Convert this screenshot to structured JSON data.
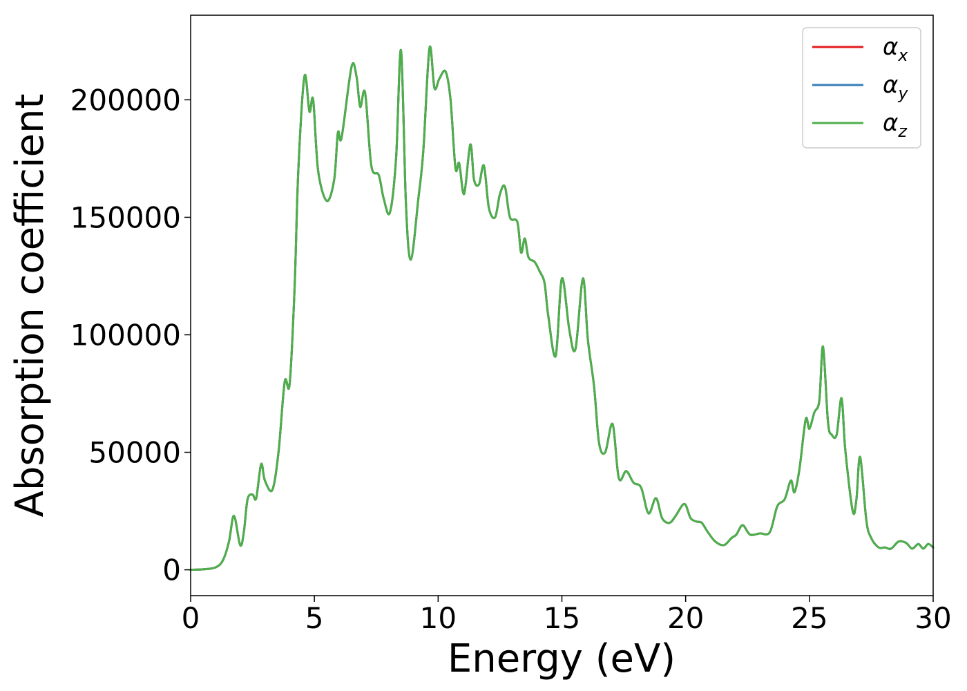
{
  "chart_data": {
    "type": "line",
    "title": "",
    "xlabel": "Energy (eV)",
    "ylabel": "Absorption coefficient",
    "xlim": [
      0,
      30
    ],
    "ylim": [
      -11000,
      236000
    ],
    "xticks": [
      0,
      5,
      10,
      15,
      20,
      25,
      30
    ],
    "xtick_labels": [
      "0",
      "5",
      "10",
      "15",
      "20",
      "25",
      "30"
    ],
    "yticks": [
      0,
      50000,
      100000,
      150000,
      200000
    ],
    "ytick_labels": [
      "0",
      "50000",
      "100000",
      "150000",
      "200000"
    ],
    "grid": false,
    "legend_position": "top-right",
    "series": [
      {
        "name": "α",
        "subscript": "x",
        "color": "#e41a1c"
      },
      {
        "name": "α",
        "subscript": "y",
        "color": "#377eb8"
      },
      {
        "name": "α",
        "subscript": "z",
        "color": "#4daf4a"
      }
    ],
    "x": [
      0,
      0.5,
      1.0,
      1.3,
      1.55,
      1.75,
      2.0,
      2.15,
      2.3,
      2.5,
      2.65,
      2.85,
      3.0,
      3.3,
      3.55,
      3.8,
      4.0,
      4.2,
      4.35,
      4.6,
      4.8,
      4.95,
      5.15,
      5.5,
      5.8,
      5.95,
      6.1,
      6.5,
      6.7,
      6.85,
      7.05,
      7.3,
      7.6,
      7.8,
      8.05,
      8.3,
      8.5,
      8.7,
      8.9,
      9.2,
      9.4,
      9.65,
      9.85,
      10.05,
      10.3,
      10.5,
      10.7,
      10.85,
      11.05,
      11.3,
      11.45,
      11.65,
      11.85,
      12.05,
      12.3,
      12.5,
      12.7,
      12.9,
      13.2,
      13.35,
      13.5,
      13.65,
      13.9,
      14.1,
      14.3,
      14.45,
      14.75,
      15.0,
      15.3,
      15.55,
      15.85,
      16.05,
      16.3,
      16.5,
      16.75,
      17.05,
      17.3,
      17.6,
      17.9,
      18.2,
      18.5,
      18.8,
      19.05,
      19.35,
      19.6,
      19.95,
      20.2,
      20.45,
      20.65,
      20.9,
      21.2,
      21.55,
      21.85,
      22.05,
      22.3,
      22.6,
      23.0,
      23.4,
      23.7,
      24.0,
      24.25,
      24.4,
      24.6,
      24.85,
      25.0,
      25.2,
      25.4,
      25.55,
      25.75,
      25.9,
      26.1,
      26.3,
      26.45,
      26.75,
      26.9,
      27.05,
      27.3,
      27.5,
      27.8,
      28.05,
      28.3,
      28.6,
      28.9,
      29.15,
      29.4,
      29.6,
      29.8,
      30.0
    ],
    "y": [
      0,
      200,
      1000,
      4000,
      12000,
      23000,
      10500,
      16000,
      30000,
      32000,
      30500,
      45000,
      38000,
      34000,
      50000,
      80000,
      79000,
      120000,
      170000,
      210000,
      195000,
      200000,
      170000,
      157000,
      166000,
      186000,
      184000,
      214000,
      210000,
      197000,
      203000,
      172000,
      168000,
      158000,
      152000,
      175000,
      221000,
      155000,
      132000,
      158000,
      178000,
      222000,
      205000,
      209000,
      212000,
      200000,
      171000,
      173000,
      160000,
      181000,
      166000,
      164000,
      172000,
      154000,
      150000,
      160000,
      163000,
      150000,
      148000,
      135000,
      141000,
      133000,
      131000,
      127000,
      122000,
      108000,
      91000,
      124000,
      102000,
      94000,
      124000,
      98000,
      78000,
      54000,
      50000,
      62000,
      39000,
      42000,
      37000,
      35000,
      24000,
      30500,
      22000,
      20000,
      23000,
      28000,
      22000,
      20500,
      20000,
      16000,
      12000,
      10500,
      13500,
      15000,
      19000,
      15000,
      15500,
      16000,
      27000,
      30000,
      38000,
      33000,
      43000,
      64000,
      60000,
      67000,
      72000,
      95000,
      63000,
      57500,
      57500,
      73000,
      51000,
      25000,
      30000,
      48000,
      21000,
      13500,
      9500,
      9500,
      9000,
      12000,
      11500,
      9000,
      11000,
      9000,
      11000,
      9500
    ]
  }
}
